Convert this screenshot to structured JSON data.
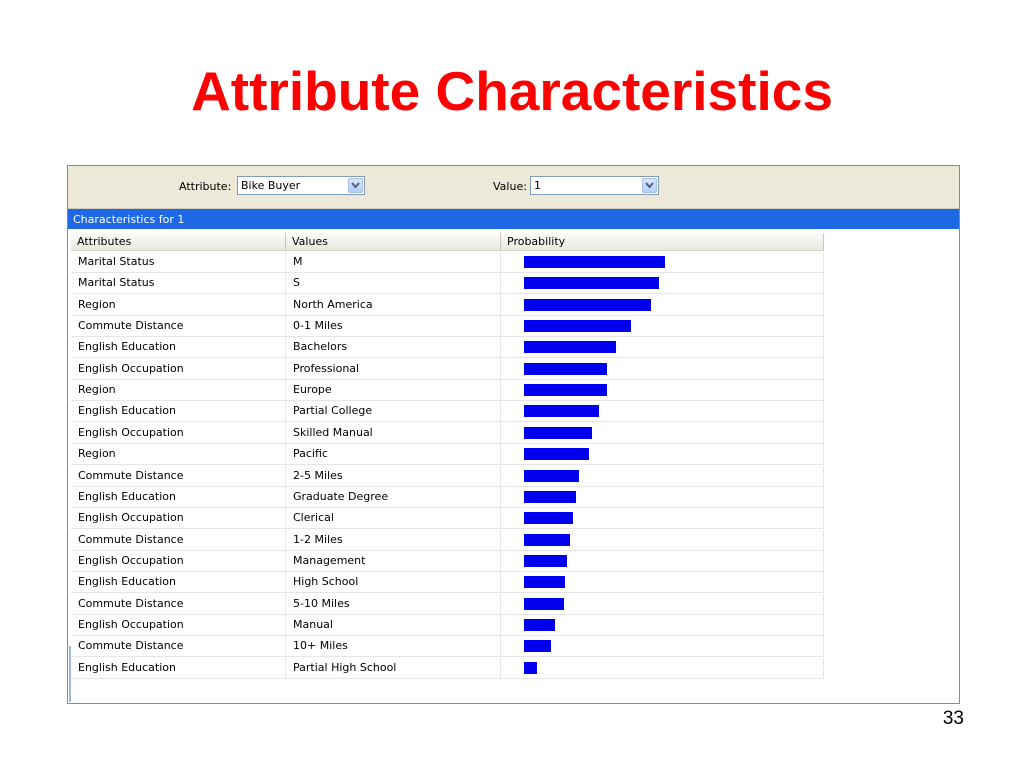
{
  "slide": {
    "title": "Attribute Characteristics",
    "number": "33"
  },
  "toolbar": {
    "attribute_label": "Attribute:",
    "attribute_value": "Bike Buyer",
    "value_label": "Value:",
    "value_value": "1"
  },
  "section_header": "Characteristics for 1",
  "columns": [
    "Attributes",
    "Values",
    "Probability"
  ],
  "colors": {
    "bar": "#0000ee",
    "header_bar": "#1e68e6",
    "title": "#ff0000"
  },
  "rows": [
    {
      "attribute": "Marital Status",
      "value": "M",
      "probability": 0.95
    },
    {
      "attribute": "Marital Status",
      "value": "S",
      "probability": 0.91
    },
    {
      "attribute": "Region",
      "value": "North America",
      "probability": 0.86
    },
    {
      "attribute": "Commute Distance",
      "value": "0-1 Miles",
      "probability": 0.72
    },
    {
      "attribute": "English Education",
      "value": "Bachelors",
      "probability": 0.62
    },
    {
      "attribute": "English Occupation",
      "value": "Professional",
      "probability": 0.56
    },
    {
      "attribute": "Region",
      "value": "Europe",
      "probability": 0.56
    },
    {
      "attribute": "English Education",
      "value": "Partial College",
      "probability": 0.51
    },
    {
      "attribute": "English Occupation",
      "value": "Skilled Manual",
      "probability": 0.46
    },
    {
      "attribute": "Region",
      "value": "Pacific",
      "probability": 0.44
    },
    {
      "attribute": "Commute Distance",
      "value": "2-5 Miles",
      "probability": 0.37
    },
    {
      "attribute": "English Education",
      "value": "Graduate Degree",
      "probability": 0.35
    },
    {
      "attribute": "English Occupation",
      "value": "Clerical",
      "probability": 0.33
    },
    {
      "attribute": "Commute Distance",
      "value": "1-2 Miles",
      "probability": 0.31
    },
    {
      "attribute": "English Occupation",
      "value": "Management",
      "probability": 0.29
    },
    {
      "attribute": "English Education",
      "value": "High School",
      "probability": 0.28
    },
    {
      "attribute": "Commute Distance",
      "value": "5-10 Miles",
      "probability": 0.27
    },
    {
      "attribute": "English Occupation",
      "value": "Manual",
      "probability": 0.21
    },
    {
      "attribute": "Commute Distance",
      "value": "10+ Miles",
      "probability": 0.18
    },
    {
      "attribute": "English Education",
      "value": "Partial High School",
      "probability": 0.09
    }
  ]
}
